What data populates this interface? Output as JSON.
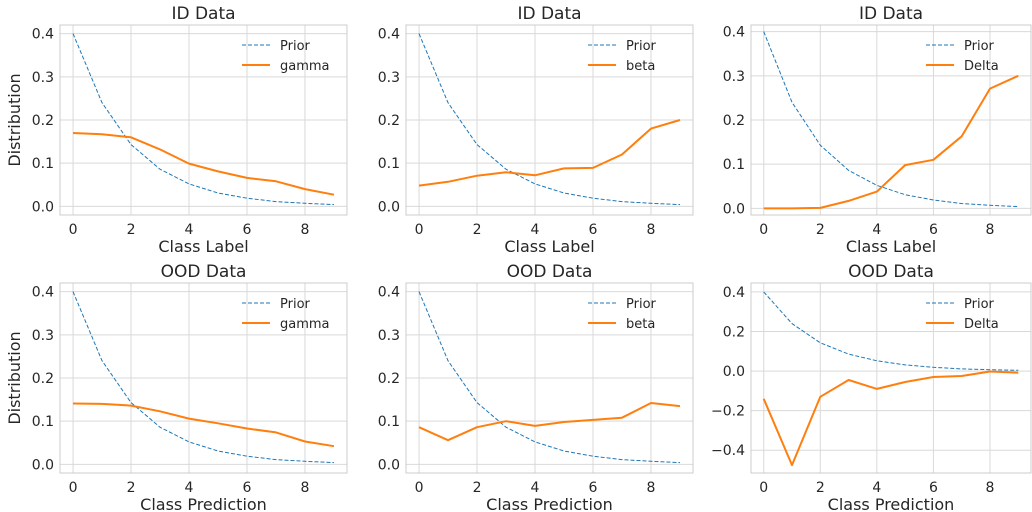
{
  "colors": {
    "prior": "#1f77b4",
    "series": "#ff7f0e"
  },
  "chart_data": [
    {
      "type": "line",
      "title": "ID Data",
      "xlabel": "Class Label",
      "ylabel": "Distribution",
      "xlim": [
        -0.45,
        9.45
      ],
      "ylim": [
        -0.02,
        0.42
      ],
      "xticks": [
        0,
        2,
        4,
        6,
        8
      ],
      "xtick_labels": [
        "0",
        "2",
        "4",
        "6",
        "8"
      ],
      "yticks": [
        0.0,
        0.1,
        0.2,
        0.3,
        0.4
      ],
      "ytick_labels": [
        "0.0",
        "0.1",
        "0.2",
        "0.3",
        "0.4"
      ],
      "grid": true,
      "legend": "top-right",
      "x": [
        0,
        1,
        2,
        3,
        4,
        5,
        6,
        7,
        8,
        9
      ],
      "series": [
        {
          "name": "Prior",
          "style": "dashed",
          "values": [
            0.4,
            0.24,
            0.143,
            0.086,
            0.052,
            0.031,
            0.019,
            0.011,
            0.007,
            0.004
          ]
        },
        {
          "name": "gamma",
          "style": "solid",
          "values": [
            0.17,
            0.167,
            0.16,
            0.132,
            0.099,
            0.081,
            0.066,
            0.058,
            0.04,
            0.027
          ]
        }
      ]
    },
    {
      "type": "line",
      "title": "ID Data",
      "xlabel": "Class Label",
      "ylabel": "",
      "xlim": [
        -0.45,
        9.45
      ],
      "ylim": [
        -0.02,
        0.42
      ],
      "xticks": [
        0,
        2,
        4,
        6,
        8
      ],
      "xtick_labels": [
        "0",
        "2",
        "4",
        "6",
        "8"
      ],
      "yticks": [
        0.0,
        0.1,
        0.2,
        0.3,
        0.4
      ],
      "ytick_labels": [
        "0.0",
        "0.1",
        "0.2",
        "0.3",
        "0.4"
      ],
      "grid": true,
      "legend": "top-right",
      "x": [
        0,
        1,
        2,
        3,
        4,
        5,
        6,
        7,
        8,
        9
      ],
      "series": [
        {
          "name": "Prior",
          "style": "dashed",
          "values": [
            0.4,
            0.24,
            0.143,
            0.086,
            0.052,
            0.031,
            0.019,
            0.011,
            0.007,
            0.004
          ]
        },
        {
          "name": "beta",
          "style": "solid",
          "values": [
            0.048,
            0.057,
            0.071,
            0.079,
            0.072,
            0.088,
            0.089,
            0.12,
            0.18,
            0.2
          ]
        }
      ]
    },
    {
      "type": "line",
      "title": "ID Data",
      "xlabel": "Class Label",
      "ylabel": "",
      "xlim": [
        -0.45,
        9.45
      ],
      "ylim": [
        -0.015,
        0.415
      ],
      "xticks": [
        0,
        2,
        4,
        6,
        8
      ],
      "xtick_labels": [
        "0",
        "2",
        "4",
        "6",
        "8"
      ],
      "yticks": [
        0.0,
        0.1,
        0.2,
        0.3,
        0.4
      ],
      "ytick_labels": [
        "0.0",
        "0.1",
        "0.2",
        "0.3",
        "0.4"
      ],
      "grid": true,
      "legend": "top-right",
      "x": [
        0,
        1,
        2,
        3,
        4,
        5,
        6,
        7,
        8,
        9
      ],
      "series": [
        {
          "name": "Prior",
          "style": "dashed",
          "values": [
            0.4,
            0.24,
            0.143,
            0.086,
            0.052,
            0.031,
            0.019,
            0.011,
            0.007,
            0.004
          ]
        },
        {
          "name": "Delta",
          "style": "solid",
          "values": [
            0.0,
            0.0,
            0.001,
            0.017,
            0.038,
            0.098,
            0.11,
            0.163,
            0.271,
            0.3
          ]
        }
      ]
    },
    {
      "type": "line",
      "title": "OOD Data",
      "xlabel": "Class Prediction",
      "ylabel": "Distribution",
      "xlim": [
        -0.45,
        9.45
      ],
      "ylim": [
        -0.02,
        0.42
      ],
      "xticks": [
        0,
        2,
        4,
        6,
        8
      ],
      "xtick_labels": [
        "0",
        "2",
        "4",
        "6",
        "8"
      ],
      "yticks": [
        0.0,
        0.1,
        0.2,
        0.3,
        0.4
      ],
      "ytick_labels": [
        "0.0",
        "0.1",
        "0.2",
        "0.3",
        "0.4"
      ],
      "grid": true,
      "legend": "top-right",
      "x": [
        0,
        1,
        2,
        3,
        4,
        5,
        6,
        7,
        8,
        9
      ],
      "series": [
        {
          "name": "Prior",
          "style": "dashed",
          "values": [
            0.4,
            0.24,
            0.143,
            0.086,
            0.052,
            0.031,
            0.019,
            0.011,
            0.007,
            0.004
          ]
        },
        {
          "name": "gamma",
          "style": "solid",
          "values": [
            0.141,
            0.14,
            0.136,
            0.123,
            0.106,
            0.095,
            0.083,
            0.074,
            0.053,
            0.042
          ]
        }
      ]
    },
    {
      "type": "line",
      "title": "OOD Data",
      "xlabel": "Class Prediction",
      "ylabel": "",
      "xlim": [
        -0.45,
        9.45
      ],
      "ylim": [
        -0.02,
        0.42
      ],
      "xticks": [
        0,
        2,
        4,
        6,
        8
      ],
      "xtick_labels": [
        "0",
        "2",
        "4",
        "6",
        "8"
      ],
      "yticks": [
        0.0,
        0.1,
        0.2,
        0.3,
        0.4
      ],
      "ytick_labels": [
        "0.0",
        "0.1",
        "0.2",
        "0.3",
        "0.4"
      ],
      "grid": true,
      "legend": "top-right",
      "x": [
        0,
        1,
        2,
        3,
        4,
        5,
        6,
        7,
        8,
        9
      ],
      "series": [
        {
          "name": "Prior",
          "style": "dashed",
          "values": [
            0.4,
            0.24,
            0.143,
            0.086,
            0.052,
            0.031,
            0.019,
            0.011,
            0.007,
            0.004
          ]
        },
        {
          "name": "beta",
          "style": "solid",
          "values": [
            0.086,
            0.056,
            0.086,
            0.1,
            0.089,
            0.098,
            0.103,
            0.108,
            0.142,
            0.135
          ]
        }
      ]
    },
    {
      "type": "line",
      "title": "OOD Data",
      "xlabel": "Class Prediction",
      "ylabel": "",
      "xlim": [
        -0.45,
        9.45
      ],
      "ylim": [
        -0.515,
        0.445
      ],
      "xticks": [
        0,
        2,
        4,
        6,
        8
      ],
      "xtick_labels": [
        "0",
        "2",
        "4",
        "6",
        "8"
      ],
      "yticks": [
        -0.4,
        -0.2,
        0.0,
        0.2,
        0.4
      ],
      "ytick_labels": [
        "−0.4",
        "−0.2",
        "0.0",
        "0.2",
        "0.4"
      ],
      "grid": true,
      "legend": "top-right",
      "x": [
        0,
        1,
        2,
        3,
        4,
        5,
        6,
        7,
        8,
        9
      ],
      "series": [
        {
          "name": "Prior",
          "style": "dashed",
          "values": [
            0.4,
            0.24,
            0.143,
            0.086,
            0.052,
            0.031,
            0.019,
            0.011,
            0.007,
            0.004
          ]
        },
        {
          "name": "Delta",
          "style": "solid",
          "values": [
            -0.14,
            -0.475,
            -0.13,
            -0.045,
            -0.09,
            -0.055,
            -0.03,
            -0.025,
            -0.002,
            -0.008
          ]
        }
      ]
    }
  ]
}
